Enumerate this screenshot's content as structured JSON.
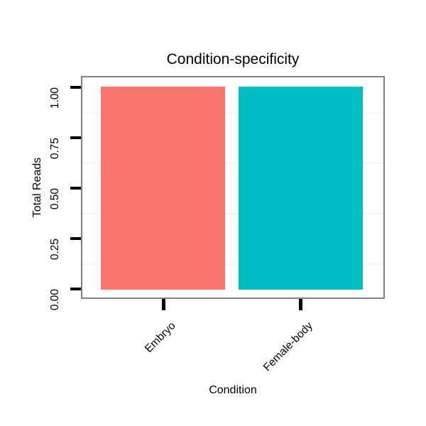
{
  "chart_data": {
    "type": "bar",
    "title": "Condition-specificity",
    "xlabel": "Condition",
    "ylabel": "Total Reads",
    "categories": [
      "Embryo",
      "Female-body"
    ],
    "values": [
      1.0,
      1.0
    ],
    "bar_colors": [
      "#F8766D",
      "#00BFC4"
    ],
    "ylim": [
      0,
      1
    ],
    "y_ticks": [
      {
        "value": 1.0,
        "label": "1.00"
      },
      {
        "value": 0.75,
        "label": "0.75"
      },
      {
        "value": 0.5,
        "label": "0.50"
      },
      {
        "value": 0.25,
        "label": "0.25"
      },
      {
        "value": 0.0,
        "label": "0.00"
      }
    ],
    "minor_gridlines_y": [
      0.875,
      0.625,
      0.375,
      0.125
    ],
    "grid_color": "#F5F5F5",
    "panel_border_color": "#808080",
    "tick_mark_color": "#000000",
    "text_color": "#000000",
    "background_color": "#FFFFFF",
    "legend": "none",
    "x_tick_label_angle_deg": 45,
    "y_tick_label_angle_deg": 90
  }
}
